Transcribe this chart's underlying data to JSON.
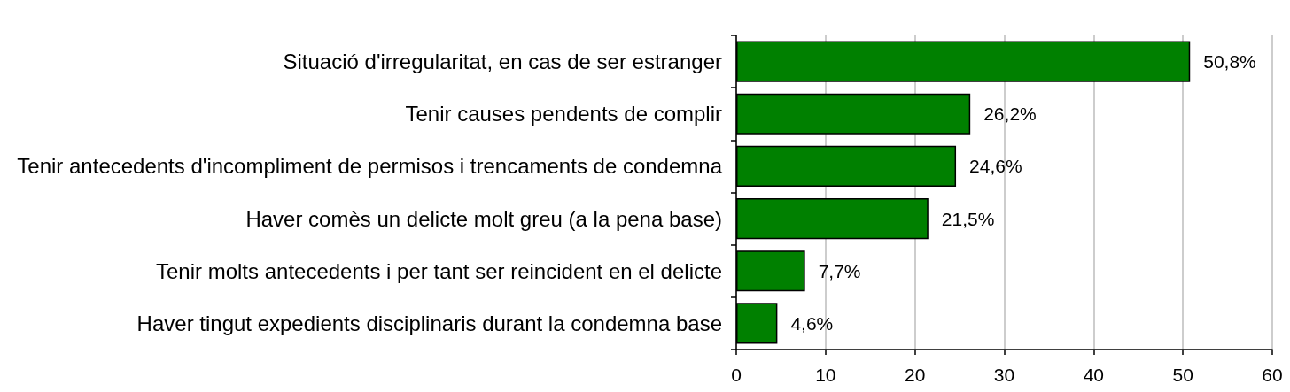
{
  "chart_data": {
    "type": "bar",
    "orientation": "horizontal",
    "categories": [
      "Situació d'irregularitat, en cas de ser estranger",
      "Tenir causes pendents de complir",
      "Tenir antecedents d'incompliment de permisos i trencaments de condemna",
      "Haver comès un delicte molt greu (a la pena base)",
      "Tenir molts antecedents i per tant ser reincident en el delicte",
      "Haver tingut expedients disciplinaris durant la condemna base"
    ],
    "values": [
      50.8,
      26.2,
      24.6,
      21.5,
      7.7,
      4.6
    ],
    "value_labels": [
      "50,8%",
      "26,2%",
      "24,6%",
      "21,5%",
      "7,7%",
      "4,6%"
    ],
    "color": "#008000",
    "xlim": [
      0,
      60
    ],
    "xticks": [
      0,
      10,
      20,
      30,
      40,
      50,
      60
    ],
    "grid": "x"
  }
}
